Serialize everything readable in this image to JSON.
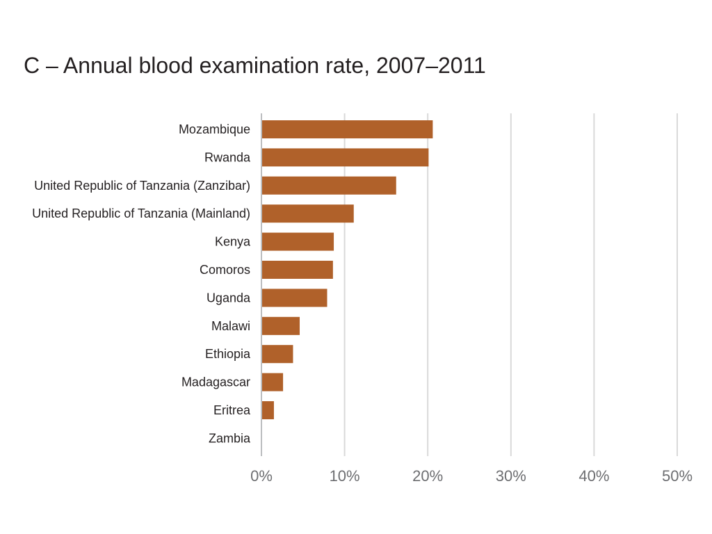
{
  "chart_data": {
    "type": "bar",
    "orientation": "horizontal",
    "title": "C – Annual blood examination rate, 2007–2011",
    "xlabel": "",
    "ylabel": "",
    "categories": [
      "Mozambique",
      "Rwanda",
      "United Republic of Tanzania (Zanzibar)",
      "United Republic of Tanzania (Mainland)",
      "Kenya",
      "Comoros",
      "Uganda",
      "Malawi",
      "Ethiopia",
      "Madagascar",
      "Eritrea",
      "Zambia"
    ],
    "values": [
      20.6,
      20.1,
      16.2,
      11.1,
      8.7,
      8.6,
      7.9,
      4.6,
      3.8,
      2.6,
      1.5,
      0
    ],
    "xlim": [
      0,
      50
    ],
    "xticks": [
      0,
      10,
      20,
      30,
      40,
      50
    ],
    "xtick_labels": [
      "0%",
      "10%",
      "20%",
      "30%",
      "40%",
      "50%"
    ],
    "bar_color": "#b0612a",
    "grid": true,
    "legend": "none"
  }
}
